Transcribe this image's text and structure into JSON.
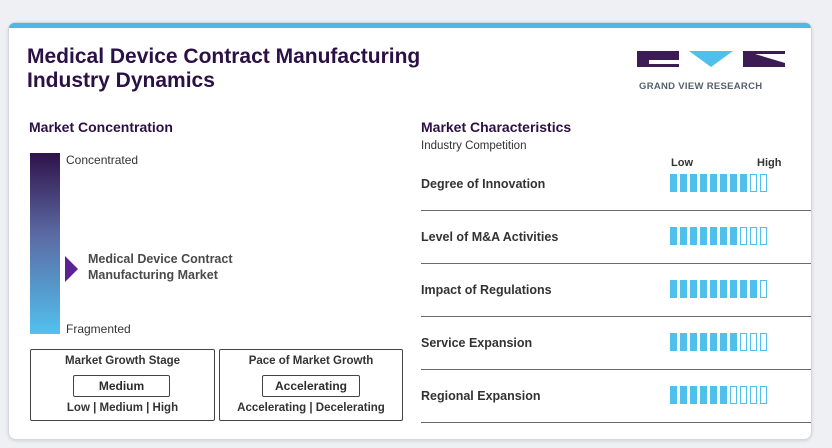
{
  "title_line1": "Medical Device Contract Manufacturing",
  "title_line2": "Industry Dynamics",
  "logo_text": "GRAND VIEW RESEARCH",
  "colors": {
    "accent_blue": "#4fc0ec",
    "dark_purple": "#2b1045",
    "marker_purple": "#5b2294",
    "top_border": "#4fb8e6"
  },
  "concentration": {
    "heading": "Market Concentration",
    "top_label": "Concentrated",
    "bottom_label": "Fragmented",
    "marker_label_1": "Medical Device Contract",
    "marker_label_2": "Manufacturing Market",
    "marker_level": 0.62
  },
  "growth_stage": {
    "title": "Market Growth Stage",
    "value": "Medium",
    "scale": "Low | Medium | High"
  },
  "growth_pace": {
    "title": "Pace of Market Growth",
    "value": "Accelerating",
    "scale": "Accelerating | Decelerating"
  },
  "characteristics": {
    "heading": "Market Characteristics",
    "subheading": "Industry Competition",
    "low_label": "Low",
    "high_label": "High",
    "max_segments": 10,
    "rows": [
      {
        "label": "Degree of Innovation",
        "filled": 8
      },
      {
        "label": "Level of M&A Activities",
        "filled": 7
      },
      {
        "label": "Impact of Regulations",
        "filled": 9
      },
      {
        "label": "Service Expansion",
        "filled": 7
      },
      {
        "label": "Regional Expansion",
        "filled": 6
      }
    ]
  }
}
